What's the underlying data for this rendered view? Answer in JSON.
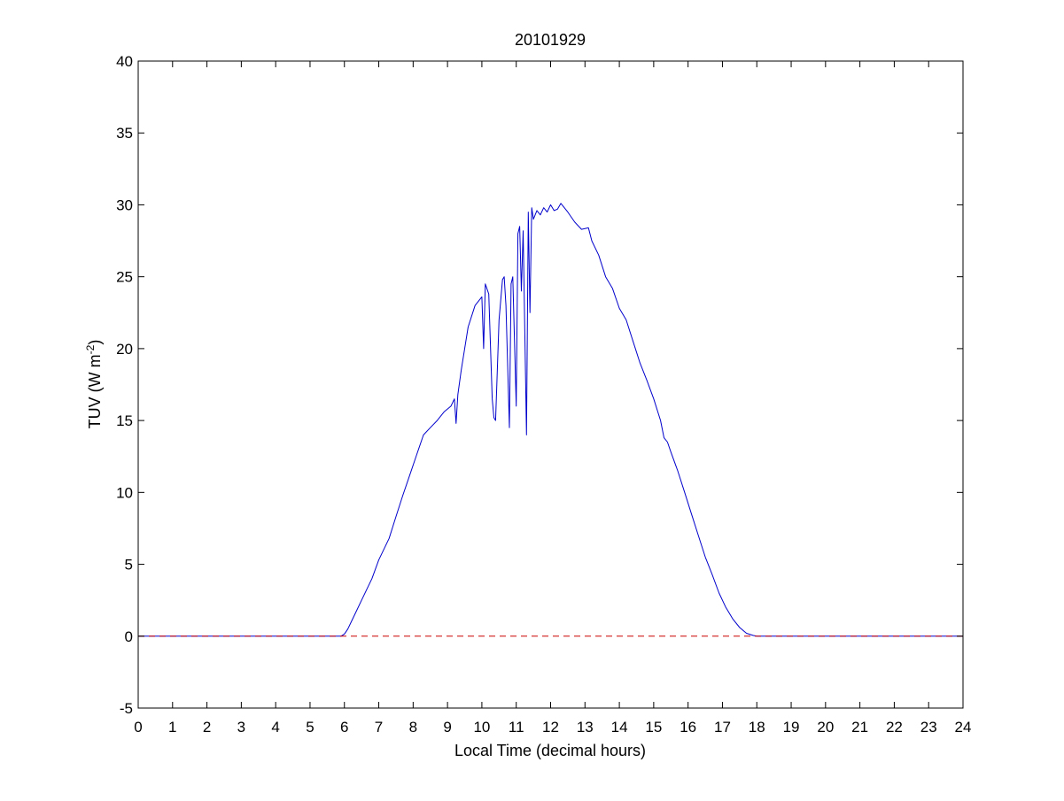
{
  "colors": {
    "background": "#ffffff",
    "axes": "#000000",
    "series_line": "#0000cc",
    "reference_line": "#cc0000"
  },
  "chart_data": {
    "type": "line",
    "title": "20101929",
    "xlabel": "Local Time (decimal hours)",
    "ylabel": {
      "base": "TUV (W m",
      "superscript": "-2",
      "suffix": ")"
    },
    "xlim": [
      0,
      24
    ],
    "ylim": [
      -5,
      40
    ],
    "xticks": [
      0,
      1,
      2,
      3,
      4,
      5,
      6,
      7,
      8,
      9,
      10,
      11,
      12,
      13,
      14,
      15,
      16,
      17,
      18,
      19,
      20,
      21,
      22,
      23,
      24
    ],
    "yticks": [
      -5,
      0,
      5,
      10,
      15,
      20,
      25,
      30,
      35,
      40
    ],
    "grid": false,
    "box": true,
    "series": [
      {
        "style": "solid",
        "color": "#0000cc",
        "x": [
          0.0,
          5.9,
          6.0,
          6.1,
          6.2,
          6.3,
          6.5,
          6.8,
          7.0,
          7.3,
          7.5,
          7.7,
          7.9,
          8.1,
          8.3,
          8.5,
          8.7,
          8.9,
          9.1,
          9.2,
          9.25,
          9.3,
          9.4,
          9.5,
          9.6,
          9.8,
          10.0,
          10.05,
          10.1,
          10.2,
          10.3,
          10.35,
          10.4,
          10.5,
          10.6,
          10.65,
          10.7,
          10.8,
          10.85,
          10.9,
          11.0,
          11.05,
          11.1,
          11.15,
          11.2,
          11.3,
          11.35,
          11.4,
          11.45,
          11.5,
          11.6,
          11.7,
          11.8,
          11.9,
          12.0,
          12.1,
          12.2,
          12.3,
          12.5,
          12.7,
          12.9,
          13.1,
          13.2,
          13.4,
          13.6,
          13.8,
          14.0,
          14.2,
          14.4,
          14.6,
          14.8,
          15.0,
          15.2,
          15.3,
          15.4,
          15.5,
          15.7,
          15.9,
          16.1,
          16.3,
          16.5,
          16.7,
          16.9,
          17.1,
          17.3,
          17.5,
          17.7,
          17.9,
          18.0,
          18.1,
          18.2,
          24.0
        ],
        "y": [
          0.0,
          0.0,
          0.15,
          0.5,
          1.0,
          1.5,
          2.5,
          4.0,
          5.3,
          6.8,
          8.3,
          9.8,
          11.2,
          12.6,
          14.0,
          14.5,
          15.0,
          15.6,
          16.0,
          16.5,
          14.8,
          16.8,
          18.5,
          20.0,
          21.5,
          23.0,
          23.6,
          20.0,
          24.5,
          23.8,
          16.5,
          15.2,
          15.0,
          22.0,
          24.8,
          25.0,
          23.0,
          14.5,
          24.5,
          25.0,
          16.0,
          28.0,
          28.5,
          24.0,
          28.2,
          14.0,
          29.5,
          22.5,
          29.8,
          29.0,
          29.6,
          29.3,
          29.8,
          29.5,
          30.0,
          29.6,
          29.7,
          30.1,
          29.5,
          28.8,
          28.3,
          28.4,
          27.5,
          26.5,
          25.0,
          24.2,
          22.8,
          22.0,
          20.5,
          19.0,
          17.8,
          16.5,
          15.0,
          13.8,
          13.5,
          12.8,
          11.5,
          10.0,
          8.5,
          7.0,
          5.5,
          4.3,
          3.0,
          2.0,
          1.2,
          0.6,
          0.2,
          0.05,
          0.0,
          0.0,
          0.0,
          0.0
        ]
      },
      {
        "style": "dashed",
        "color": "#cc0000",
        "x": [
          0,
          24
        ],
        "y": [
          0,
          0
        ]
      }
    ]
  }
}
